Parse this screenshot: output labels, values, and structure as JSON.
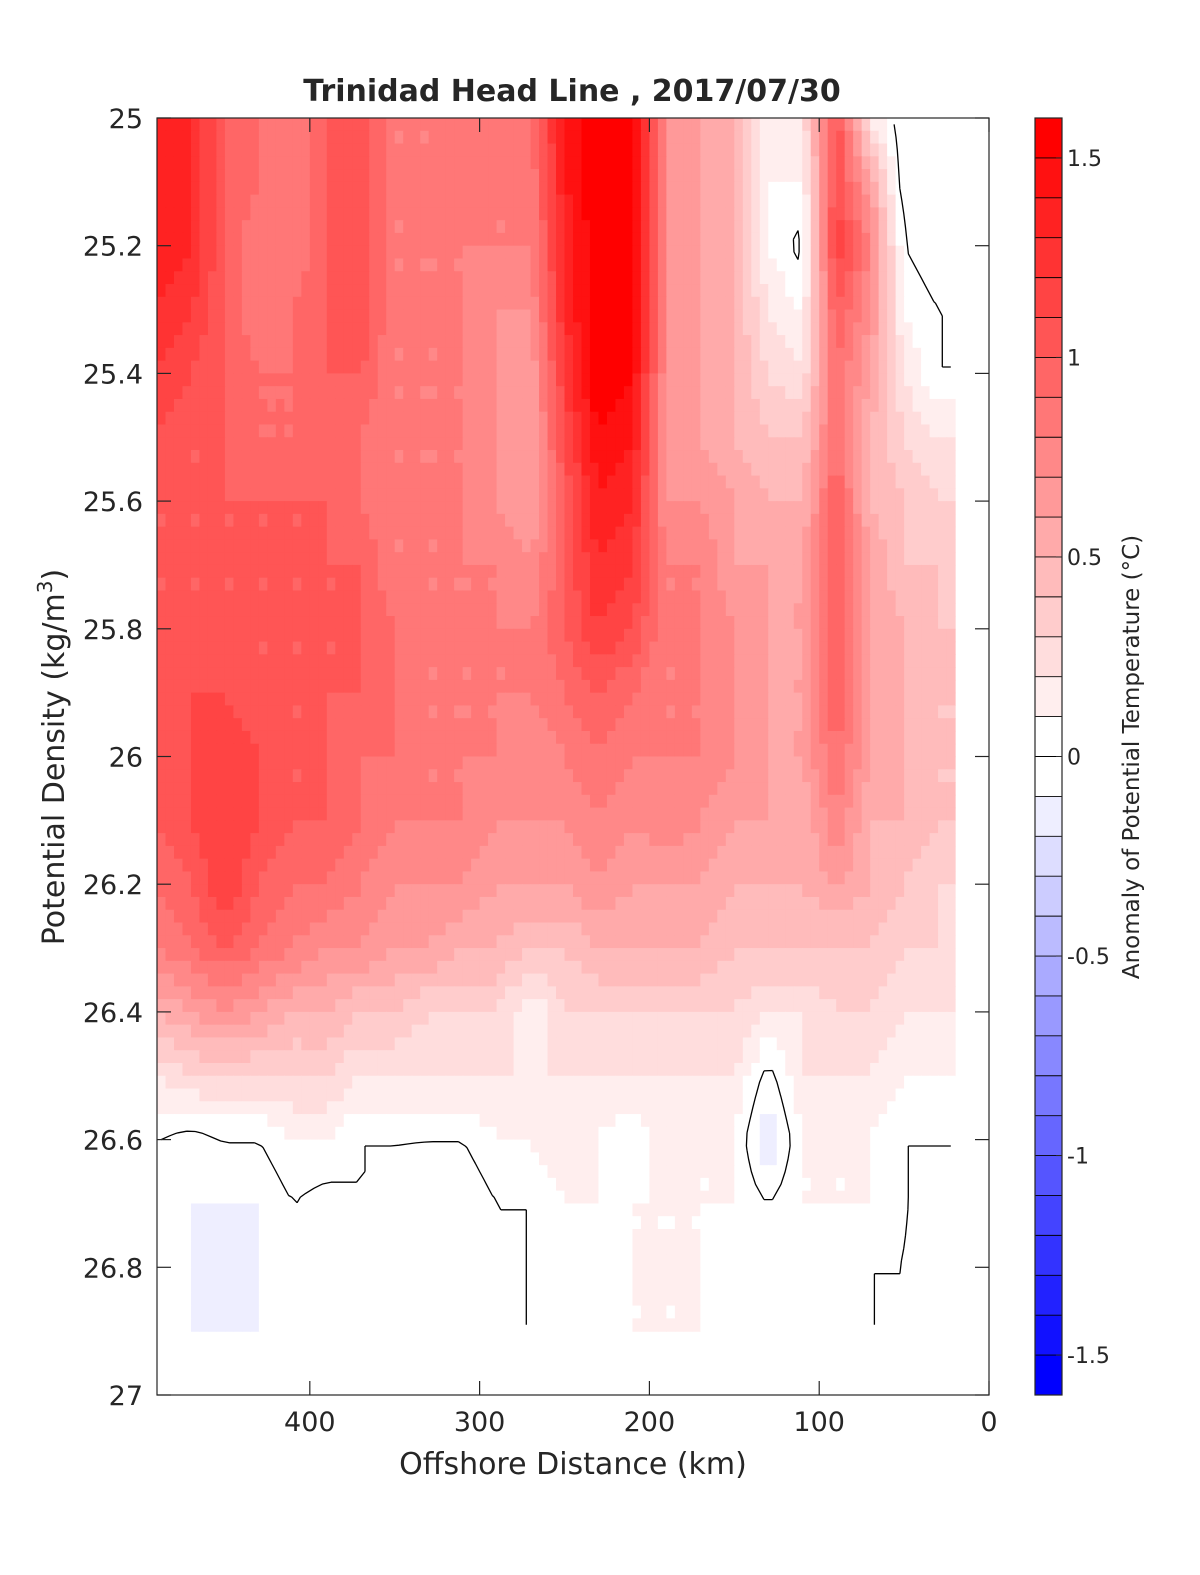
{
  "chart_data": {
    "type": "heatmap",
    "subtype": "filled-contour",
    "title": "Trinidad Head Line , 2017/07/30",
    "xlabel": "Offshore Distance (km)",
    "ylabel_main": "Potential Density (kg/m",
    "ylabel_sup": "3",
    "ylabel_close": ")",
    "x_reversed": true,
    "y_reversed": true,
    "xlim": [
      0,
      490
    ],
    "ylim": [
      25,
      27
    ],
    "x_ticks": [
      "400",
      "300",
      "200",
      "100",
      "0"
    ],
    "x_tick_values": [
      400,
      300,
      200,
      100,
      0
    ],
    "y_ticks": [
      "25",
      "25.2",
      "25.4",
      "25.6",
      "25.8",
      "26",
      "26.2",
      "26.4",
      "26.6",
      "26.8",
      "27"
    ],
    "y_tick_values": [
      25,
      25.2,
      25.4,
      25.6,
      25.8,
      26,
      26.2,
      26.4,
      26.6,
      26.8,
      27
    ],
    "colorbar": {
      "label": "Anomaly of Potential Temperature (°C)",
      "range": [
        -1.6,
        1.6
      ],
      "level_step": 0.1,
      "ticks": [
        "1.5",
        "1",
        "0.5",
        "0",
        "-0.5",
        "-1",
        "-1.5"
      ],
      "tick_values": [
        1.5,
        1,
        0.5,
        0,
        -0.5,
        -1,
        -1.5
      ],
      "high_color": "#ff0000",
      "zero_color": "#ffffff",
      "low_color": "#0000ff"
    },
    "zero_contour_color": "#000000",
    "grid": false,
    "data_extent": {
      "x_max": 490,
      "x_min": 20,
      "y_min": 25,
      "y_max": 26.9
    },
    "x": [
      490,
      470,
      450,
      430,
      410,
      390,
      370,
      350,
      330,
      310,
      290,
      270,
      250,
      230,
      210,
      190,
      170,
      150,
      130,
      110,
      90,
      70,
      50,
      30,
      20
    ],
    "y": [
      25.0,
      25.1,
      25.2,
      25.3,
      25.4,
      25.5,
      25.6,
      25.7,
      25.8,
      25.9,
      26.0,
      26.1,
      26.2,
      26.3,
      26.4,
      26.5,
      26.6,
      26.7,
      26.8,
      26.9
    ],
    "z": [
      [
        1.3,
        1.3,
        1.0,
        0.9,
        0.8,
        1.0,
        1.1,
        0.8,
        0.8,
        0.9,
        0.8,
        0.9,
        1.4,
        1.6,
        1.6,
        0.7,
        0.6,
        0.5,
        0.1,
        0.2,
        1.1,
        0.2,
        -0.1,
        0.0,
        0.0
      ],
      [
        1.4,
        1.3,
        1.0,
        0.9,
        0.8,
        1.0,
        1.1,
        0.8,
        0.8,
        0.9,
        0.8,
        0.8,
        1.4,
        1.6,
        1.6,
        0.7,
        0.6,
        0.5,
        0.1,
        0.1,
        1.1,
        0.6,
        -0.1,
        0.0,
        0.0
      ],
      [
        1.4,
        1.3,
        1.0,
        0.8,
        0.8,
        1.0,
        1.1,
        0.8,
        0.8,
        0.8,
        0.8,
        0.8,
        1.3,
        1.6,
        1.6,
        0.7,
        0.6,
        0.5,
        0.1,
        -0.05,
        1.2,
        0.8,
        0.0,
        -0.1,
        -0.1
      ],
      [
        1.3,
        1.2,
        1.0,
        0.8,
        0.9,
        1.0,
        1.1,
        0.8,
        0.8,
        0.8,
        0.7,
        0.7,
        1.3,
        1.6,
        1.6,
        0.7,
        0.6,
        0.5,
        0.2,
        0.1,
        1.0,
        0.7,
        0.1,
        0.0,
        0.0
      ],
      [
        1.2,
        1.1,
        1.0,
        0.9,
        0.9,
        1.0,
        1.0,
        0.8,
        0.8,
        0.8,
        0.7,
        0.6,
        1.2,
        1.6,
        1.5,
        0.7,
        0.6,
        0.5,
        0.3,
        0.2,
        0.9,
        0.6,
        0.2,
        0.0,
        0.0
      ],
      [
        1.1,
        1.0,
        1.0,
        0.9,
        0.9,
        1.0,
        0.9,
        0.8,
        0.8,
        0.8,
        0.7,
        0.6,
        1.1,
        1.5,
        1.4,
        0.7,
        0.6,
        0.5,
        0.4,
        0.4,
        0.9,
        0.5,
        0.3,
        0.2,
        0.2
      ],
      [
        1.0,
        1.0,
        1.0,
        1.0,
        1.0,
        1.0,
        0.9,
        0.8,
        0.8,
        0.8,
        0.7,
        0.6,
        1.0,
        1.4,
        1.3,
        0.7,
        0.7,
        0.6,
        0.5,
        0.5,
        1.0,
        0.5,
        0.4,
        0.3,
        0.3
      ],
      [
        1.0,
        1.0,
        1.0,
        1.0,
        1.0,
        1.0,
        1.0,
        0.8,
        0.8,
        0.8,
        0.8,
        0.7,
        1.0,
        1.3,
        1.2,
        0.8,
        0.8,
        0.6,
        0.6,
        0.6,
        1.0,
        0.6,
        0.4,
        0.4,
        0.3
      ],
      [
        1.0,
        1.0,
        1.0,
        1.0,
        1.0,
        1.0,
        1.0,
        0.9,
        0.8,
        0.8,
        0.8,
        0.8,
        1.0,
        1.2,
        1.1,
        0.8,
        0.8,
        0.7,
        0.6,
        0.6,
        1.0,
        0.6,
        0.5,
        0.4,
        0.4
      ],
      [
        1.0,
        1.1,
        1.1,
        1.0,
        1.0,
        1.0,
        1.0,
        0.9,
        0.8,
        0.8,
        0.8,
        0.8,
        0.9,
        1.0,
        0.9,
        0.8,
        0.8,
        0.7,
        0.6,
        0.6,
        1.0,
        0.6,
        0.5,
        0.4,
        0.4
      ],
      [
        1.0,
        1.1,
        1.2,
        1.1,
        1.0,
        1.0,
        0.9,
        0.9,
        0.8,
        0.8,
        0.8,
        0.7,
        0.8,
        0.9,
        0.8,
        0.8,
        0.8,
        0.7,
        0.6,
        0.6,
        0.9,
        0.6,
        0.5,
        0.4,
        0.4
      ],
      [
        1.0,
        1.1,
        1.2,
        1.1,
        1.0,
        1.0,
        0.9,
        0.8,
        0.8,
        0.8,
        0.7,
        0.7,
        0.7,
        0.8,
        0.7,
        0.8,
        0.7,
        0.6,
        0.6,
        0.5,
        0.8,
        0.5,
        0.5,
        0.4,
        0.4
      ],
      [
        0.9,
        1.0,
        1.2,
        1.0,
        0.9,
        0.9,
        0.8,
        0.7,
        0.7,
        0.7,
        0.6,
        0.6,
        0.6,
        0.7,
        0.6,
        0.6,
        0.6,
        0.5,
        0.5,
        0.5,
        0.6,
        0.5,
        0.4,
        0.3,
        0.3
      ],
      [
        0.8,
        0.9,
        1.0,
        0.9,
        0.8,
        0.7,
        0.7,
        0.6,
        0.6,
        0.5,
        0.5,
        0.4,
        0.4,
        0.5,
        0.5,
        0.5,
        0.5,
        0.4,
        0.4,
        0.4,
        0.4,
        0.4,
        0.3,
        0.3,
        0.3
      ],
      [
        0.5,
        0.6,
        0.7,
        0.6,
        0.5,
        0.5,
        0.4,
        0.4,
        0.3,
        0.3,
        0.3,
        0.1,
        0.3,
        0.3,
        0.3,
        0.3,
        0.3,
        0.3,
        0.2,
        0.2,
        0.3,
        0.3,
        0.2,
        0.2,
        0.2
      ],
      [
        0.2,
        0.3,
        0.3,
        0.3,
        0.3,
        0.3,
        0.2,
        0.2,
        0.2,
        0.2,
        0.2,
        0.2,
        0.2,
        0.2,
        0.2,
        0.2,
        0.2,
        0.2,
        -0.05,
        0.2,
        0.2,
        0.2,
        0.1,
        0.1,
        0.1
      ],
      [
        0.0,
        -0.05,
        0.0,
        0.0,
        0.1,
        0.1,
        0.0,
        0.0,
        0.0,
        0.0,
        0.1,
        0.1,
        0.2,
        0.1,
        0.0,
        0.2,
        0.1,
        0.1,
        -0.2,
        0.1,
        0.1,
        0.1,
        0.0,
        0.0,
        0.0
      ],
      [
        -0.1,
        -0.1,
        -0.1,
        -0.1,
        0.0,
        -0.05,
        0.0,
        0.0,
        -0.1,
        -0.1,
        0.0,
        0.0,
        0.1,
        0.1,
        0.1,
        0.1,
        0.1,
        0.1,
        0.0,
        0.1,
        0.1,
        0.1,
        0.0,
        0.0,
        0.0
      ],
      [
        0.0,
        -0.1,
        -0.15,
        -0.1,
        0.0,
        0.0,
        0.0,
        0.0,
        -0.1,
        -0.1,
        0.0,
        0.0,
        0.1,
        0.0,
        0.1,
        0.1,
        0.1,
        0.0,
        0.1,
        0.0,
        0.1,
        0.0,
        0.0,
        -0.05,
        0.0
      ],
      [
        0.0,
        -0.1,
        -0.1,
        -0.1,
        0.0,
        0.0,
        0.0,
        0.0,
        -0.1,
        -0.05,
        0.0,
        0.0,
        0.1,
        0.0,
        0.1,
        0.1,
        0.1,
        0.0,
        0.1,
        0.0,
        0.1,
        0.0,
        0.0,
        -0.05,
        0.0
      ]
    ]
  }
}
